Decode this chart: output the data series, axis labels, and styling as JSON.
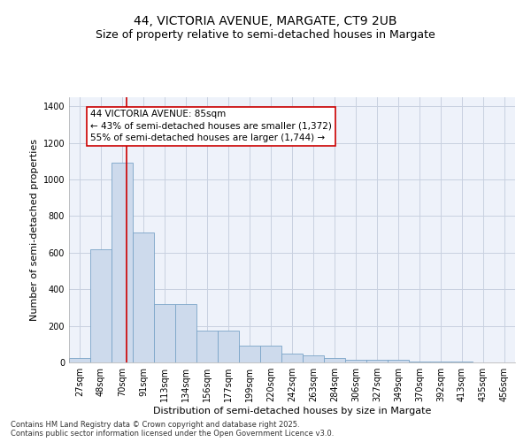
{
  "title_line1": "44, VICTORIA AVENUE, MARGATE, CT9 2UB",
  "title_line2": "Size of property relative to semi-detached houses in Margate",
  "xlabel": "Distribution of semi-detached houses by size in Margate",
  "ylabel": "Number of semi-detached properties",
  "categories": [
    "27sqm",
    "48sqm",
    "70sqm",
    "91sqm",
    "113sqm",
    "134sqm",
    "156sqm",
    "177sqm",
    "199sqm",
    "220sqm",
    "242sqm",
    "263sqm",
    "284sqm",
    "306sqm",
    "327sqm",
    "349sqm",
    "370sqm",
    "392sqm",
    "413sqm",
    "435sqm",
    "456sqm"
  ],
  "values": [
    25,
    620,
    1090,
    710,
    320,
    320,
    175,
    175,
    90,
    90,
    50,
    40,
    25,
    13,
    13,
    13,
    7,
    7,
    7,
    0,
    0
  ],
  "bar_color": "#cddaec",
  "bar_edge_color": "#7aa4c8",
  "bg_color": "#eef2fa",
  "grid_color": "#c8d0e0",
  "vline_color": "#cc0000",
  "vline_x": 2.2,
  "annotation_text": "44 VICTORIA AVENUE: 85sqm\n← 43% of semi-detached houses are smaller (1,372)\n55% of semi-detached houses are larger (1,744) →",
  "ylim": [
    0,
    1450
  ],
  "yticks": [
    0,
    200,
    400,
    600,
    800,
    1000,
    1200,
    1400
  ],
  "footer_line1": "Contains HM Land Registry data © Crown copyright and database right 2025.",
  "footer_line2": "Contains public sector information licensed under the Open Government Licence v3.0.",
  "title_fontsize": 10,
  "subtitle_fontsize": 9,
  "axis_label_fontsize": 8,
  "tick_fontsize": 7,
  "annotation_fontsize": 7.5,
  "footer_fontsize": 6
}
